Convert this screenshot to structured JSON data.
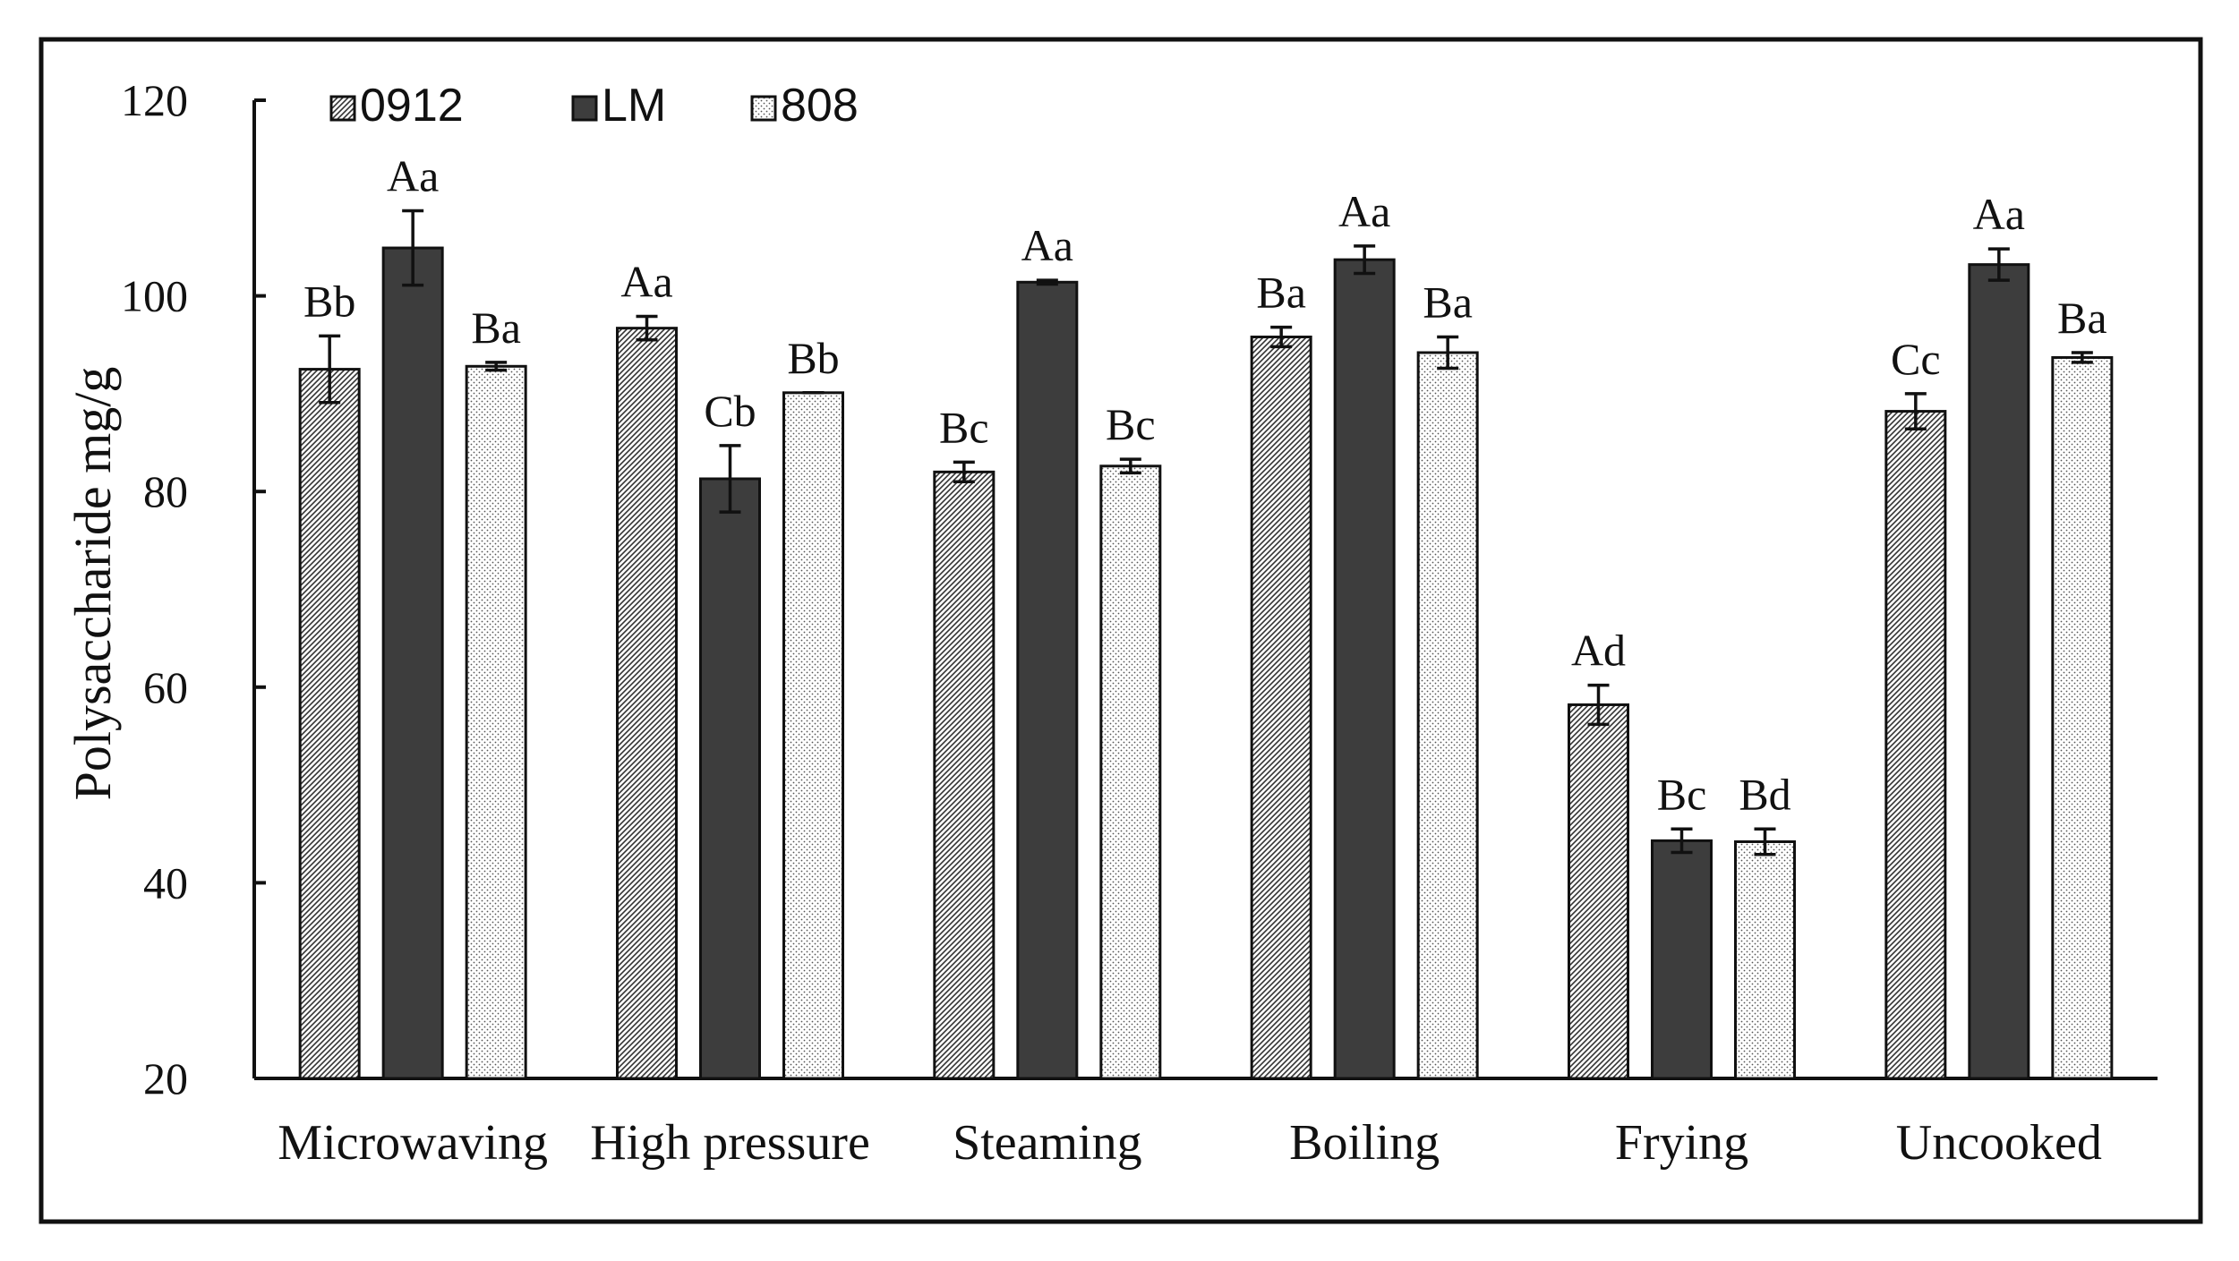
{
  "chart_data": {
    "type": "bar",
    "title": "",
    "xlabel": "",
    "ylabel": "Polysaccharide  mg/g",
    "ylim": [
      20,
      120
    ],
    "yticks": [
      20,
      40,
      60,
      80,
      100,
      120
    ],
    "grid": false,
    "legend_position": "top-left",
    "categories": [
      "Microwaving",
      "High pressure",
      "Steaming",
      "Boiling",
      "Frying",
      "Uncooked"
    ],
    "series": [
      {
        "name": "0912",
        "pattern": "diagonal-hatch",
        "color": "#8a8a8a",
        "values": [
          92.5,
          96.7,
          82.0,
          95.8,
          58.2,
          88.2
        ],
        "errors": [
          3.4,
          1.2,
          1.0,
          1.0,
          2.0,
          1.8
        ],
        "labels": [
          "Bb",
          "Aa",
          "Bc",
          "Ba",
          "Ad",
          "Cc"
        ]
      },
      {
        "name": "LM",
        "pattern": "solid",
        "color": "#3d3d3d",
        "values": [
          104.9,
          81.3,
          101.4,
          103.7,
          44.3,
          103.2
        ],
        "errors": [
          3.8,
          3.4,
          0.2,
          1.4,
          1.2,
          1.6
        ],
        "labels": [
          "Aa",
          "Cb",
          "Aa",
          "Aa",
          "Bc",
          "Aa"
        ]
      },
      {
        "name": "808",
        "pattern": "dots",
        "color": "#e6e6e6",
        "values": [
          92.8,
          90.1,
          82.6,
          94.2,
          44.2,
          93.7
        ],
        "errors": [
          0.4,
          0.0,
          0.7,
          1.6,
          1.3,
          0.5
        ],
        "labels": [
          "Ba",
          "Bb",
          "Bc",
          "Ba",
          "Bd",
          "Ba"
        ]
      }
    ]
  }
}
